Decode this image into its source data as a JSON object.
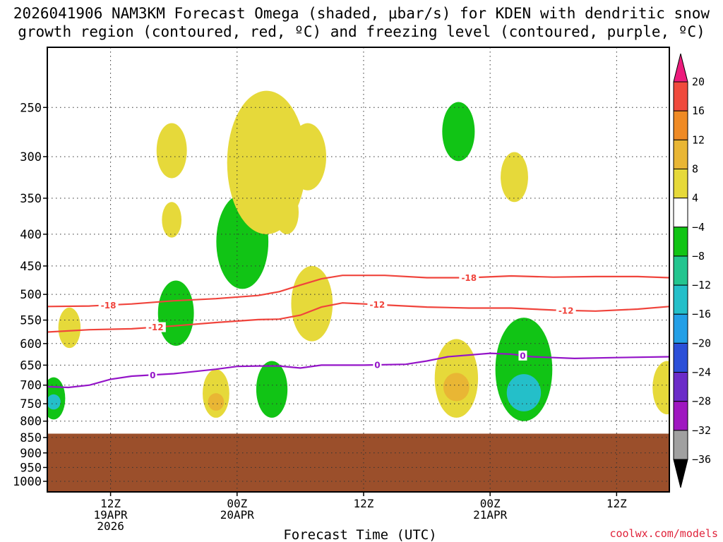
{
  "title": {
    "line1": "2026041906 NAM3KM Forecast Omega (shaded, μbar/s) for KDEN with dendritic snow",
    "line2": "growth region (contoured, red, ºC) and freezing level (contoured, purple, ºC)"
  },
  "xlabel": "Forecast Time (UTC)",
  "credit": "coolwx.com/models",
  "chart_data": {
    "type": "heatmap",
    "run": "2026041906",
    "model": "NAM3KM",
    "station": "KDEN",
    "xlabel": "Forecast Time (UTC)",
    "ylabel": "",
    "x_units": "forecast hour from 2026041906",
    "xlim": [
      0,
      59
    ],
    "y_scale": "log-pressure",
    "ylim": [
      1040,
      200
    ],
    "y_ticks": [
      250,
      300,
      350,
      400,
      450,
      500,
      550,
      600,
      650,
      700,
      750,
      800,
      850,
      900,
      950,
      1000
    ],
    "x_ticks": [
      {
        "hour": 6,
        "line1": "12Z",
        "line2": "19APR",
        "line3": "2026"
      },
      {
        "hour": 18,
        "line1": "00Z",
        "line2": "20APR",
        "line3": ""
      },
      {
        "hour": 30,
        "line1": "12Z",
        "line2": "",
        "line3": ""
      },
      {
        "hour": 42,
        "line1": "00Z",
        "line2": "21APR",
        "line3": ""
      },
      {
        "hour": 54,
        "line1": "12Z",
        "line2": "",
        "line3": ""
      }
    ],
    "grid": true,
    "colorbar": {
      "label_values": [
        "20",
        "16",
        "12",
        "8",
        "4",
        "−4",
        "−8",
        "−12",
        "−16",
        "−20",
        "−24",
        "−28",
        "−32",
        "−36"
      ],
      "bins": [
        {
          "lo": 20,
          "hi": 99,
          "color": "#ec1b7c"
        },
        {
          "lo": 16,
          "hi": 20,
          "color": "#f04a3c"
        },
        {
          "lo": 12,
          "hi": 16,
          "color": "#ef8a24"
        },
        {
          "lo": 8,
          "hi": 12,
          "color": "#e9b634"
        },
        {
          "lo": 4,
          "hi": 8,
          "color": "#e6d93a"
        },
        {
          "lo": -4,
          "hi": 4,
          "color": "#ffffff"
        },
        {
          "lo": -8,
          "hi": -4,
          "color": "#11c415"
        },
        {
          "lo": -12,
          "hi": -8,
          "color": "#23c58f"
        },
        {
          "lo": -16,
          "hi": -12,
          "color": "#24bfc9"
        },
        {
          "lo": -20,
          "hi": -16,
          "color": "#239fe6"
        },
        {
          "lo": -24,
          "hi": -20,
          "color": "#2b4fd8"
        },
        {
          "lo": -28,
          "hi": -24,
          "color": "#6b2bc8"
        },
        {
          "lo": -32,
          "hi": -28,
          "color": "#9f17c0"
        },
        {
          "lo": -36,
          "hi": -32,
          "color": "#a0a0a0"
        },
        {
          "lo": -99,
          "hi": -36,
          "color": "#000000"
        }
      ]
    },
    "terrain": {
      "color": "#9b4f2b",
      "top_hpa": 838
    },
    "omega_features": [
      {
        "band": "4 to 8",
        "hour": 2.1,
        "hpa": [
          525,
          610
        ]
      },
      {
        "band": "-4 to -8",
        "hour": 0.6,
        "hpa": [
          680,
          795
        ],
        "core_band": "-12 to -16",
        "core_hpa": 745
      },
      {
        "band": "4 to 8",
        "hour": 11.8,
        "hpa": [
          265,
          325
        ]
      },
      {
        "band": "4 to 8",
        "hour": 11.8,
        "hpa": [
          355,
          405
        ]
      },
      {
        "band": "-4 to -8",
        "hour": 12.2,
        "hpa": [
          475,
          605
        ]
      },
      {
        "band": "4 to 8",
        "hour": 16.0,
        "hpa": [
          660,
          790
        ],
        "core_band": "8 to 12",
        "core_hpa": 745
      },
      {
        "band": "-4 to -8",
        "hour": 18.5,
        "hpa": [
          345,
          490
        ]
      },
      {
        "band": "4 to 8",
        "hour": 20.8,
        "hpa": [
          235,
          400
        ]
      },
      {
        "band": "4 to 8",
        "hour": 22.7,
        "hpa": [
          340,
          400
        ]
      },
      {
        "band": "4 to 8",
        "hour": 24.7,
        "hpa": [
          265,
          340
        ]
      },
      {
        "band": "4 to 8",
        "hour": 25.1,
        "hpa": [
          450,
          595
        ]
      },
      {
        "band": "-4 to -8",
        "hour": 21.3,
        "hpa": [
          640,
          790
        ]
      },
      {
        "band": "4 to 8",
        "hour": 38.8,
        "hpa": [
          590,
          790
        ],
        "core_band": "8 to 12",
        "core_hpa": 705
      },
      {
        "band": "-4 to -8",
        "hour": 39.0,
        "hpa": [
          245,
          305
        ]
      },
      {
        "band": "4 to 8",
        "hour": 44.3,
        "hpa": [
          295,
          355
        ]
      },
      {
        "band": "-4 to -8",
        "hour": 45.2,
        "hpa": [
          545,
          800
        ],
        "core_band": "-12 to -16",
        "core_hpa": 720
      },
      {
        "band": "4 to 8",
        "hour": 58.8,
        "hpa": [
          640,
          780
        ]
      }
    ],
    "series": [
      {
        "name": "-18",
        "color": "#f0443c",
        "label": "-18",
        "label_hours": [
          5.8,
          40.0
        ],
        "points": [
          [
            0,
            523
          ],
          [
            4,
            522
          ],
          [
            8,
            518
          ],
          [
            12,
            512
          ],
          [
            16,
            508
          ],
          [
            20,
            502
          ],
          [
            22,
            495
          ],
          [
            24,
            483
          ],
          [
            26,
            472
          ],
          [
            28,
            466
          ],
          [
            32,
            466
          ],
          [
            36,
            470
          ],
          [
            40,
            470
          ],
          [
            44,
            467
          ],
          [
            48,
            469
          ],
          [
            52,
            468
          ],
          [
            56,
            468
          ],
          [
            59,
            470
          ]
        ]
      },
      {
        "name": "-12",
        "color": "#f0443c",
        "label": "-12",
        "label_hours": [
          10.3,
          31.3,
          49.2
        ],
        "points": [
          [
            0,
            575
          ],
          [
            4,
            570
          ],
          [
            8,
            568
          ],
          [
            12,
            562
          ],
          [
            16,
            555
          ],
          [
            20,
            549
          ],
          [
            22,
            548
          ],
          [
            24,
            540
          ],
          [
            26,
            524
          ],
          [
            28,
            516
          ],
          [
            32,
            520
          ],
          [
            36,
            524
          ],
          [
            40,
            526
          ],
          [
            44,
            526
          ],
          [
            48,
            530
          ],
          [
            52,
            532
          ],
          [
            56,
            528
          ],
          [
            59,
            523
          ]
        ]
      },
      {
        "name": "0",
        "color": "#9414c8",
        "label": "0",
        "label_hours": [
          10.0,
          31.3,
          45.1
        ],
        "points": [
          [
            0,
            704
          ],
          [
            2,
            706
          ],
          [
            4,
            700
          ],
          [
            6,
            685
          ],
          [
            8,
            677
          ],
          [
            12,
            671
          ],
          [
            16,
            660
          ],
          [
            18,
            653
          ],
          [
            20,
            652
          ],
          [
            22,
            652
          ],
          [
            24,
            657
          ],
          [
            26,
            650
          ],
          [
            30,
            650
          ],
          [
            34,
            648
          ],
          [
            36,
            640
          ],
          [
            38,
            630
          ],
          [
            42,
            622
          ],
          [
            44,
            624
          ],
          [
            46,
            630
          ],
          [
            50,
            634
          ],
          [
            54,
            632
          ],
          [
            59,
            630
          ]
        ]
      }
    ]
  }
}
